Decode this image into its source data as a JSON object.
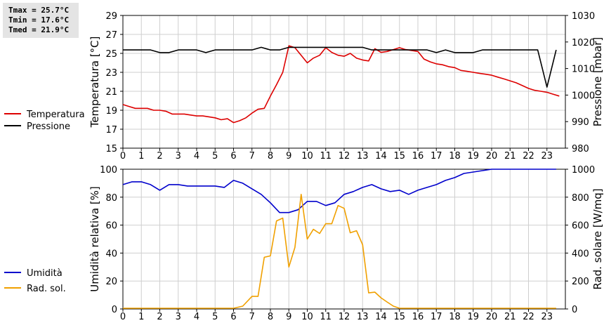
{
  "stats": {
    "tmax": "Tmax = 25.7°C",
    "tmin": "Tmin = 17.6°C",
    "tmed": "Tmed = 21.9°C"
  },
  "chart_data": [
    {
      "type": "line",
      "xlim": [
        0,
        24
      ],
      "x_ticks": [
        "0",
        "1",
        "2",
        "3",
        "4",
        "5",
        "6",
        "7",
        "8",
        "9",
        "10",
        "11",
        "12",
        "13",
        "14",
        "15",
        "16",
        "17",
        "18",
        "19",
        "20",
        "21",
        "22",
        "23"
      ],
      "ylabel_left": "Temperatura [°C]",
      "ylabel_right": "Pressione [mbar]",
      "ylim_left": [
        15,
        29
      ],
      "yticks_left": [
        "15",
        "17",
        "19",
        "21",
        "23",
        "25",
        "27",
        "29"
      ],
      "ylim_right": [
        980,
        1030
      ],
      "yticks_right": [
        "980",
        "990",
        "1000",
        "1010",
        "1020",
        "1030"
      ],
      "grid": true,
      "legend_position": "left, outside plot",
      "series": [
        {
          "name": "Temperatura",
          "axis": "left",
          "color": "#dd0000",
          "x": [
            0,
            0.33,
            0.67,
            1,
            1.33,
            1.67,
            2,
            2.33,
            2.67,
            3,
            3.33,
            3.67,
            4,
            4.33,
            4.67,
            5,
            5.33,
            5.67,
            6,
            6.33,
            6.67,
            7,
            7.33,
            7.67,
            8,
            8.33,
            8.67,
            9,
            9.33,
            9.67,
            10,
            10.33,
            10.67,
            11,
            11.33,
            11.67,
            12,
            12.33,
            12.67,
            13,
            13.33,
            13.67,
            14,
            14.33,
            14.67,
            15,
            15.33,
            15.67,
            16,
            16.33,
            16.67,
            17,
            17.33,
            17.67,
            18,
            18.33,
            18.67,
            19,
            19.33,
            19.67,
            20,
            20.33,
            20.67,
            21,
            21.33,
            21.67,
            22,
            22.33,
            22.67,
            23,
            23.33,
            23.67
          ],
          "y": [
            19.6,
            19.4,
            19.2,
            19.2,
            19.2,
            19.0,
            19.0,
            18.9,
            18.6,
            18.6,
            18.6,
            18.5,
            18.4,
            18.4,
            18.3,
            18.2,
            18.0,
            18.1,
            17.7,
            17.9,
            18.2,
            18.7,
            19.1,
            19.2,
            20.5,
            21.7,
            23.0,
            25.8,
            25.6,
            24.8,
            24.0,
            24.5,
            24.8,
            25.6,
            25.1,
            24.8,
            24.7,
            25.0,
            24.5,
            24.3,
            24.2,
            25.5,
            25.1,
            25.2,
            25.4,
            25.6,
            25.4,
            25.3,
            25.2,
            24.4,
            24.1,
            23.9,
            23.8,
            23.6,
            23.5,
            23.2,
            23.1,
            23.0,
            22.9,
            22.8,
            22.7,
            22.5,
            22.3,
            22.1,
            21.9,
            21.6,
            21.3,
            21.1,
            21.0,
            20.9,
            20.7,
            20.5
          ]
        },
        {
          "name": "Pressione",
          "axis": "right",
          "color": "#000000",
          "x": [
            0,
            0.5,
            1,
            1.5,
            2,
            2.5,
            3,
            3.5,
            4,
            4.5,
            5,
            5.5,
            6,
            6.5,
            7,
            7.5,
            8,
            8.5,
            9,
            9.5,
            10,
            10.5,
            11,
            11.5,
            12,
            12.5,
            13,
            13.5,
            14,
            14.5,
            15,
            15.5,
            16,
            16.5,
            17,
            17.5,
            18,
            18.5,
            19,
            19.5,
            20,
            20.5,
            21,
            21.5,
            22,
            22.5,
            23,
            23.5
          ],
          "y": [
            1017,
            1017,
            1017,
            1017,
            1016,
            1016,
            1017,
            1017,
            1017,
            1016,
            1017,
            1017,
            1017,
            1017,
            1017,
            1018,
            1017,
            1017,
            1018,
            1018,
            1018,
            1018,
            1018,
            1018,
            1018,
            1018,
            1018,
            1017,
            1017,
            1017,
            1017,
            1017,
            1017,
            1017,
            1016,
            1017,
            1016,
            1016,
            1016,
            1017,
            1017,
            1017,
            1017,
            1017,
            1017,
            1017,
            1003,
            1017
          ]
        }
      ]
    },
    {
      "type": "line",
      "xlim": [
        0,
        24
      ],
      "x_ticks": [
        "0",
        "1",
        "2",
        "3",
        "4",
        "5",
        "6",
        "7",
        "8",
        "9",
        "10",
        "11",
        "12",
        "13",
        "14",
        "15",
        "16",
        "17",
        "18",
        "19",
        "20",
        "21",
        "22",
        "23"
      ],
      "ylabel_left": "Umidità relativa [%]",
      "ylabel_right": "Rad. solare [W/mq]",
      "ylim_left": [
        0,
        100
      ],
      "yticks_left": [
        "0",
        "20",
        "40",
        "60",
        "80",
        "100"
      ],
      "ylim_right": [
        0,
        1000
      ],
      "yticks_right": [
        "0",
        "200",
        "400",
        "600",
        "800",
        "1000"
      ],
      "grid": true,
      "legend_position": "left, outside plot",
      "series": [
        {
          "name": "Umidità",
          "axis": "left",
          "color": "#0000cc",
          "x": [
            0,
            0.5,
            1,
            1.5,
            2,
            2.5,
            3,
            3.5,
            4,
            4.5,
            5,
            5.5,
            6,
            6.5,
            7,
            7.5,
            8,
            8.5,
            9,
            9.5,
            10,
            10.5,
            11,
            11.5,
            12,
            12.5,
            13,
            13.5,
            14,
            14.5,
            15,
            15.5,
            16,
            16.5,
            17,
            17.5,
            18,
            18.5,
            19,
            19.5,
            20,
            20.5,
            21,
            21.5,
            22,
            22.5,
            23,
            23.5
          ],
          "y": [
            89,
            91,
            91,
            89,
            85,
            89,
            89,
            88,
            88,
            88,
            88,
            87,
            92,
            90,
            86,
            82,
            76,
            69,
            69,
            71,
            77,
            77,
            74,
            76,
            82,
            84,
            87,
            89,
            86,
            84,
            85,
            82,
            85,
            87,
            89,
            92,
            94,
            97,
            98,
            99,
            100,
            100,
            100,
            100,
            100,
            100,
            100,
            100
          ]
        },
        {
          "name": "Rad. sol.",
          "axis": "right",
          "color": "#f0a000",
          "x": [
            0,
            0.5,
            1,
            1.5,
            2,
            2.5,
            3,
            3.5,
            4,
            4.5,
            5,
            5.5,
            6,
            6.5,
            7,
            7.33,
            7.67,
            8,
            8.33,
            8.67,
            9,
            9.33,
            9.67,
            10,
            10.33,
            10.67,
            11,
            11.33,
            11.67,
            12,
            12.33,
            12.67,
            13,
            13.33,
            13.67,
            14,
            14.33,
            14.67,
            15,
            15.33,
            15.67,
            16,
            16.33,
            16.67,
            17,
            17.33,
            17.67,
            18,
            18.33,
            18.67,
            19,
            19.5,
            20,
            20.5,
            21,
            21.5,
            22,
            22.5,
            23,
            23.5
          ],
          "y": [
            5,
            5,
            5,
            5,
            5,
            5,
            5,
            5,
            5,
            5,
            5,
            5,
            5,
            20,
            90,
            90,
            370,
            380,
            630,
            650,
            300,
            440,
            820,
            500,
            570,
            540,
            610,
            610,
            740,
            720,
            545,
            560,
            460,
            115,
            120,
            80,
            50,
            20,
            5,
            5,
            5,
            5,
            5,
            5,
            5,
            5,
            5,
            5,
            5,
            5,
            5,
            5,
            5,
            5,
            5,
            5,
            5,
            5,
            5,
            5
          ]
        }
      ]
    }
  ]
}
